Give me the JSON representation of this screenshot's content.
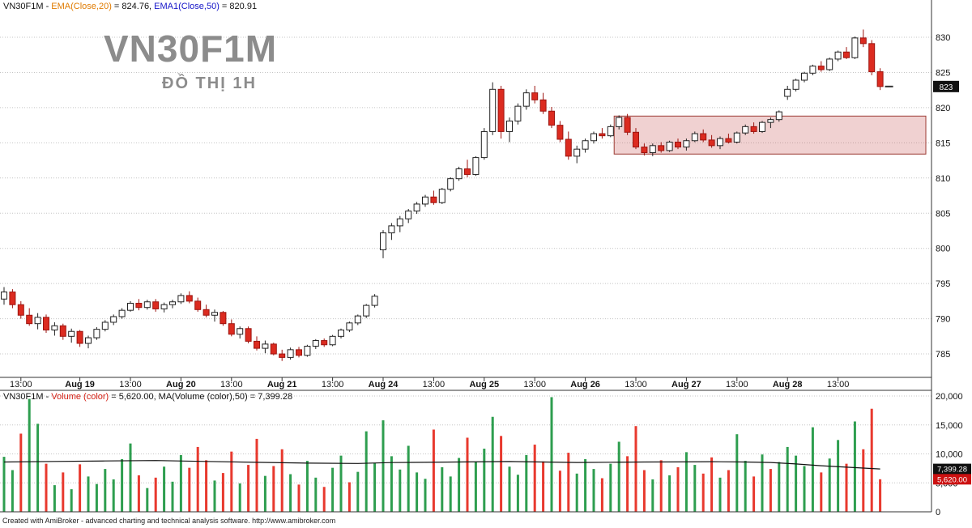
{
  "header": {
    "segments": [
      {
        "text": "VN30F1M - ",
        "color": "text",
        "name": "symbol-label"
      },
      {
        "text": "EMA(Close,20)",
        "color": "label_orange",
        "name": "ema20-label"
      },
      {
        "text": " = 824.76, ",
        "color": "text",
        "name": "ema20-value"
      },
      {
        "text": "EMA1(Close,50)",
        "color": "label_blue",
        "name": "ema50-label"
      },
      {
        "text": " = 820.91",
        "color": "text",
        "name": "ema50-value"
      }
    ]
  },
  "volume_header": {
    "segments": [
      {
        "text": "VN30F1M - ",
        "color": "text",
        "name": "symbol-label"
      },
      {
        "text": "Volume (color)",
        "color": "label_red",
        "name": "volume-label"
      },
      {
        "text": " = 5,620.00, MA(Volume (color),50) = 7,399.28",
        "color": "text",
        "name": "volume-values"
      }
    ]
  },
  "watermark": {
    "symbol": "VN30F1M",
    "timeframe": "ĐỒ THỊ 1H"
  },
  "price_axis": {
    "ticks": [
      830,
      825,
      820,
      815,
      810,
      805,
      800,
      795,
      790,
      785
    ],
    "badge": {
      "text": "823",
      "value": 823
    }
  },
  "time_axis": {
    "labels": [
      {
        "text": "13:00",
        "bar": 2,
        "bold": false
      },
      {
        "text": "Aug 19",
        "bar": 9,
        "bold": true
      },
      {
        "text": "13:00",
        "bar": 15,
        "bold": false
      },
      {
        "text": "Aug 20",
        "bar": 21,
        "bold": true
      },
      {
        "text": "13:00",
        "bar": 27,
        "bold": false
      },
      {
        "text": "Aug 21",
        "bar": 33,
        "bold": true
      },
      {
        "text": "13:00",
        "bar": 39,
        "bold": false
      },
      {
        "text": "Aug 24",
        "bar": 45,
        "bold": true
      },
      {
        "text": "13:00",
        "bar": 51,
        "bold": false
      },
      {
        "text": "Aug 25",
        "bar": 57,
        "bold": true
      },
      {
        "text": "13:00",
        "bar": 63,
        "bold": false
      },
      {
        "text": "Aug 26",
        "bar": 69,
        "bold": true
      },
      {
        "text": "13:00",
        "bar": 75,
        "bold": false
      },
      {
        "text": "Aug 27",
        "bar": 81,
        "bold": true
      },
      {
        "text": "13:00",
        "bar": 87,
        "bold": false
      },
      {
        "text": "Aug 28",
        "bar": 93,
        "bold": true
      },
      {
        "text": "13:00",
        "bar": 99,
        "bold": false
      }
    ]
  },
  "volume_axis": {
    "ticks": [
      {
        "text": "20,000",
        "value": 20000
      },
      {
        "text": "15,000",
        "value": 15000
      },
      {
        "text": "10,000",
        "value": 10000
      },
      {
        "text": "5,000",
        "value": 5000
      },
      {
        "text": "0",
        "value": 0
      }
    ],
    "ma_badge": {
      "text": "7,399.28",
      "value": 7399.28
    },
    "last_badge": {
      "text": "5,620.00",
      "value": 5620
    }
  },
  "footer": {
    "text": "Created with AmiBroker - advanced charting and technical analysis software. http://www.amibroker.com"
  },
  "colors": {
    "text": "#111111",
    "label_orange": "#e07b00",
    "label_blue": "#1515c8",
    "label_red": "#d42015",
    "up": "#ffffff",
    "up_border": "#222222",
    "down": "#dc2b20",
    "down_border": "#9c1510",
    "vol_up": "#2e9e4f",
    "vol_down": "#e8392e",
    "ma_line": "#111111",
    "zone_fill": "rgba(200,90,90,0.28)",
    "zone_border": "#9c3a33",
    "badge_dark": "#111111",
    "badge_red": "#cc1111",
    "grid": "#c4c4c4",
    "axis": "#333333",
    "watermark": "#8c8c8c"
  },
  "chart_data": {
    "type": "candlestick",
    "symbol": "VN30F1M",
    "timeframe": "1H",
    "title": "VN30F1M - EMA(Close,20) = 824.76, EMA1(Close,50) = 820.91",
    "ylim": [
      781,
      834
    ],
    "last_close": 823.0,
    "indicators": {
      "ema20_last": 824.76,
      "ema50_last": 820.91,
      "volume_last": 5620.0,
      "volume_ma50_last": 7399.28
    },
    "highlight_zone": {
      "price_top": 818.8,
      "price_bottom": 813.4,
      "start_bar": 73,
      "extend_to_right": true
    },
    "candles": [
      [
        792.8,
        794.5,
        792.0,
        793.8
      ],
      [
        793.8,
        794.2,
        791.5,
        792.0
      ],
      [
        792.0,
        792.5,
        790.0,
        790.5
      ],
      [
        790.5,
        791.5,
        789.0,
        789.3
      ],
      [
        789.3,
        790.8,
        788.5,
        790.2
      ],
      [
        790.2,
        790.6,
        788.0,
        788.4
      ],
      [
        788.4,
        789.5,
        787.6,
        789.0
      ],
      [
        789.0,
        789.3,
        787.0,
        787.5
      ],
      [
        787.5,
        788.6,
        786.6,
        788.2
      ],
      [
        788.2,
        788.4,
        786.0,
        786.5
      ],
      [
        786.5,
        787.6,
        785.8,
        787.3
      ],
      [
        787.3,
        788.8,
        787.0,
        788.5
      ],
      [
        788.5,
        789.8,
        788.2,
        789.5
      ],
      [
        789.5,
        790.6,
        789.1,
        790.3
      ],
      [
        790.3,
        791.5,
        790.0,
        791.2
      ],
      [
        791.2,
        792.5,
        791.0,
        792.2
      ],
      [
        792.2,
        792.8,
        791.2,
        791.6
      ],
      [
        791.6,
        792.7,
        791.3,
        792.4
      ],
      [
        792.4,
        792.8,
        791.0,
        791.4
      ],
      [
        791.4,
        792.3,
        790.9,
        792.0
      ],
      [
        792.0,
        792.7,
        791.5,
        792.4
      ],
      [
        792.4,
        793.6,
        792.1,
        793.3
      ],
      [
        793.3,
        793.9,
        792.2,
        792.5
      ],
      [
        792.5,
        793.0,
        791.0,
        791.3
      ],
      [
        791.3,
        792.0,
        790.2,
        790.5
      ],
      [
        790.5,
        791.3,
        789.6,
        790.9
      ],
      [
        790.9,
        791.1,
        789.0,
        789.3
      ],
      [
        789.3,
        789.9,
        787.5,
        787.8
      ],
      [
        787.8,
        788.9,
        787.2,
        788.6
      ],
      [
        788.6,
        788.9,
        786.5,
        786.8
      ],
      [
        786.8,
        787.5,
        785.5,
        785.8
      ],
      [
        785.8,
        786.9,
        785.1,
        786.4
      ],
      [
        786.4,
        786.6,
        784.8,
        785.0
      ],
      [
        785.0,
        785.6,
        784.0,
        784.5
      ],
      [
        784.5,
        785.9,
        784.2,
        785.6
      ],
      [
        785.6,
        786.0,
        784.5,
        784.8
      ],
      [
        784.8,
        786.3,
        784.6,
        786.1
      ],
      [
        786.1,
        787.1,
        785.7,
        786.9
      ],
      [
        786.9,
        787.2,
        786.0,
        786.3
      ],
      [
        786.3,
        787.7,
        786.1,
        787.5
      ],
      [
        787.5,
        788.6,
        787.2,
        788.4
      ],
      [
        788.4,
        789.6,
        788.1,
        789.4
      ],
      [
        789.4,
        790.6,
        789.1,
        790.4
      ],
      [
        790.4,
        792.1,
        790.1,
        791.9
      ],
      [
        791.9,
        793.5,
        791.6,
        793.2
      ],
      [
        799.8,
        802.6,
        798.6,
        802.2
      ],
      [
        802.2,
        803.6,
        801.2,
        803.2
      ],
      [
        803.2,
        804.6,
        802.3,
        804.2
      ],
      [
        804.2,
        805.6,
        803.6,
        805.3
      ],
      [
        805.3,
        806.6,
        804.9,
        806.3
      ],
      [
        806.3,
        807.6,
        805.9,
        807.3
      ],
      [
        807.3,
        808.2,
        806.2,
        806.5
      ],
      [
        806.5,
        808.6,
        806.3,
        808.4
      ],
      [
        808.4,
        810.1,
        808.1,
        809.9
      ],
      [
        809.9,
        811.6,
        809.6,
        811.3
      ],
      [
        811.3,
        812.6,
        810.1,
        810.5
      ],
      [
        810.5,
        813.1,
        810.3,
        812.9
      ],
      [
        812.9,
        817.1,
        812.6,
        816.6
      ],
      [
        816.6,
        823.6,
        816.1,
        822.6
      ],
      [
        822.6,
        823.1,
        815.6,
        816.6
      ],
      [
        816.6,
        818.6,
        815.1,
        818.1
      ],
      [
        818.1,
        820.6,
        817.6,
        820.2
      ],
      [
        820.2,
        822.6,
        819.7,
        822.1
      ],
      [
        822.1,
        823.1,
        820.6,
        821.1
      ],
      [
        821.1,
        822.1,
        819.1,
        819.5
      ],
      [
        819.5,
        820.1,
        817.1,
        817.5
      ],
      [
        817.5,
        818.1,
        815.1,
        815.5
      ],
      [
        815.5,
        816.6,
        812.6,
        813.1
      ],
      [
        813.1,
        814.6,
        812.1,
        814.1
      ],
      [
        814.1,
        815.6,
        813.6,
        815.3
      ],
      [
        815.3,
        816.6,
        814.9,
        816.3
      ],
      [
        816.3,
        817.1,
        815.6,
        816.0
      ],
      [
        816.0,
        817.6,
        815.8,
        817.3
      ],
      [
        817.3,
        818.9,
        816.9,
        818.6
      ],
      [
        818.6,
        819.1,
        816.1,
        816.5
      ],
      [
        816.5,
        817.1,
        814.1,
        814.4
      ],
      [
        814.4,
        814.9,
        813.2,
        813.6
      ],
      [
        813.6,
        814.9,
        813.1,
        814.6
      ],
      [
        814.6,
        815.1,
        813.6,
        813.9
      ],
      [
        813.9,
        815.3,
        813.7,
        815.1
      ],
      [
        815.1,
        815.6,
        814.1,
        814.4
      ],
      [
        814.4,
        815.6,
        813.9,
        815.3
      ],
      [
        815.3,
        816.6,
        815.1,
        816.3
      ],
      [
        816.3,
        816.9,
        815.1,
        815.4
      ],
      [
        815.4,
        816.1,
        814.3,
        814.6
      ],
      [
        814.6,
        815.9,
        814.1,
        815.6
      ],
      [
        815.6,
        816.3,
        814.9,
        815.1
      ],
      [
        815.1,
        816.6,
        814.9,
        816.4
      ],
      [
        816.4,
        817.6,
        816.1,
        817.3
      ],
      [
        817.3,
        817.9,
        816.3,
        816.6
      ],
      [
        816.6,
        818.1,
        816.4,
        817.9
      ],
      [
        817.9,
        818.6,
        817.1,
        818.3
      ],
      [
        818.3,
        819.6,
        818.0,
        819.4
      ],
      [
        821.6,
        823.1,
        821.1,
        822.6
      ],
      [
        822.6,
        824.1,
        822.3,
        823.9
      ],
      [
        823.9,
        825.1,
        823.6,
        824.9
      ],
      [
        824.9,
        826.1,
        824.6,
        825.9
      ],
      [
        825.9,
        826.6,
        825.1,
        825.4
      ],
      [
        825.4,
        827.1,
        825.2,
        826.9
      ],
      [
        826.9,
        828.1,
        826.6,
        827.9
      ],
      [
        827.9,
        828.6,
        826.9,
        827.1
      ],
      [
        827.1,
        830.1,
        826.9,
        829.9
      ],
      [
        829.9,
        831.1,
        828.6,
        829.1
      ],
      [
        829.1,
        829.6,
        824.6,
        825.1
      ],
      [
        825.1,
        825.6,
        822.5,
        823.0
      ]
    ],
    "volume": {
      "type": "bar",
      "ylim": [
        0,
        20000
      ],
      "values": [
        9500,
        7200,
        13500,
        19500,
        15200,
        8300,
        4600,
        6800,
        3900,
        8200,
        6100,
        4800,
        7400,
        5600,
        9100,
        11800,
        6300,
        4100,
        5900,
        7800,
        5200,
        9800,
        7600,
        11200,
        8900,
        5400,
        6700,
        10400,
        4900,
        8100,
        12600,
        6200,
        7900,
        10800,
        6500,
        4700,
        8800,
        5900,
        4300,
        7600,
        9700,
        5100,
        6900,
        13900,
        8400,
        15800,
        9600,
        7300,
        11400,
        6800,
        5700,
        14200,
        7700,
        6100,
        9300,
        12800,
        8600,
        10900,
        16400,
        13100,
        7800,
        6400,
        9800,
        11600,
        8700,
        19800,
        7100,
        10200,
        6600,
        9100,
        7400,
        5800,
        8300,
        12100,
        9600,
        14800,
        7200,
        5600,
        8900,
        6300,
        7700,
        10300,
        8100,
        6600,
        9400,
        5900,
        7200,
        13400,
        8800,
        6100,
        9900,
        7400,
        8600,
        11200,
        9700,
        7900,
        14600,
        6800,
        9200,
        12400,
        8300,
        15600,
        10800,
        17800,
        5620
      ],
      "colors": [
        "g",
        "g",
        "r",
        "g",
        "g",
        "r",
        "g",
        "r",
        "g",
        "r",
        "g",
        "g",
        "g",
        "g",
        "g",
        "g",
        "r",
        "g",
        "r",
        "g",
        "g",
        "g",
        "r",
        "r",
        "r",
        "g",
        "r",
        "r",
        "g",
        "r",
        "r",
        "g",
        "r",
        "r",
        "g",
        "r",
        "g",
        "g",
        "r",
        "g",
        "g",
        "r",
        "g",
        "g",
        "g",
        "g",
        "g",
        "g",
        "g",
        "g",
        "g",
        "r",
        "g",
        "g",
        "g",
        "r",
        "g",
        "g",
        "g",
        "r",
        "g",
        "g",
        "g",
        "r",
        "r",
        "g",
        "r",
        "r",
        "g",
        "g",
        "g",
        "r",
        "g",
        "g",
        "r",
        "r",
        "r",
        "g",
        "r",
        "g",
        "r",
        "g",
        "g",
        "r",
        "r",
        "g",
        "r",
        "g",
        "g",
        "r",
        "g",
        "r",
        "g",
        "g",
        "g",
        "g",
        "g",
        "r",
        "g",
        "g",
        "r",
        "g",
        "r",
        "r",
        "r"
      ],
      "ma50_points": [
        [
          0,
          8600
        ],
        [
          6,
          8700
        ],
        [
          12,
          8780
        ],
        [
          18,
          8850
        ],
        [
          24,
          8700
        ],
        [
          30,
          8550
        ],
        [
          36,
          8400
        ],
        [
          42,
          8350
        ],
        [
          46,
          8500
        ],
        [
          50,
          8550
        ],
        [
          55,
          8620
        ],
        [
          60,
          8680
        ],
        [
          64,
          8600
        ],
        [
          68,
          8520
        ],
        [
          72,
          8560
        ],
        [
          76,
          8600
        ],
        [
          80,
          8620
        ],
        [
          84,
          8660
        ],
        [
          88,
          8600
        ],
        [
          91,
          8520
        ],
        [
          94,
          8260
        ],
        [
          97,
          7960
        ],
        [
          100,
          7700
        ],
        [
          102,
          7550
        ],
        [
          104,
          7400
        ]
      ]
    }
  }
}
